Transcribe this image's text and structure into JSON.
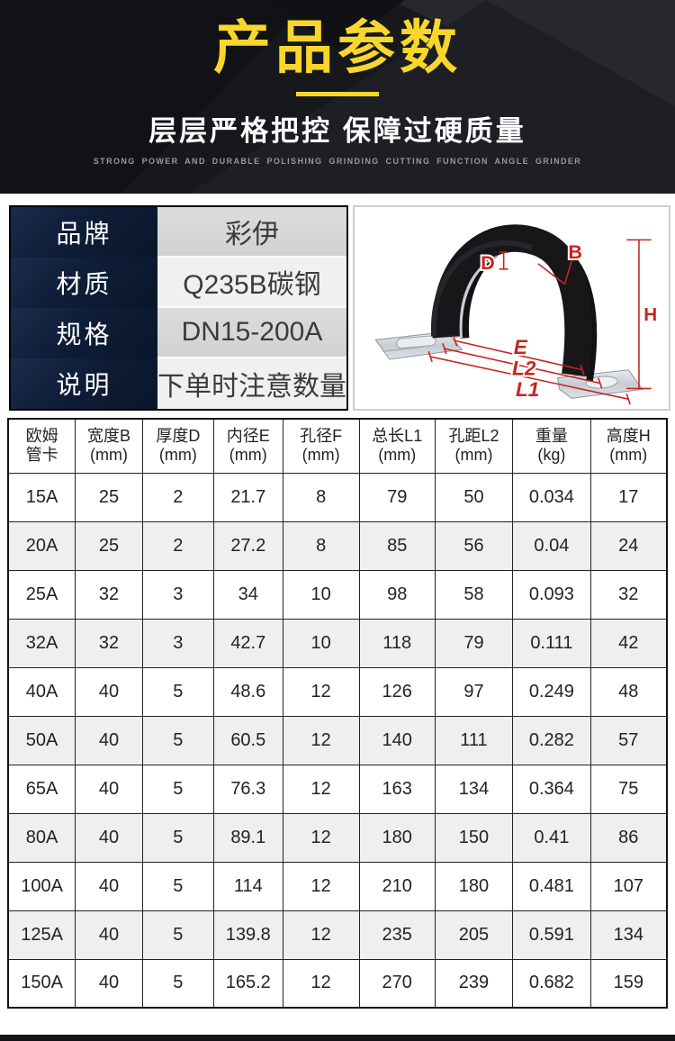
{
  "header": {
    "title": "产品参数",
    "subtitle": "层层严格把控 保障过硬质量",
    "tagline_en": "STRONG POWER AND DURABLE POLISHING GRINDING CUTTING FUNCTION ANGLE GRINDER",
    "accent_color": "#f8d62b"
  },
  "product_info": {
    "rows": [
      {
        "label": "品牌",
        "value": "彩伊"
      },
      {
        "label": "材质",
        "value": "Q235B碳钢"
      },
      {
        "label": "规格",
        "value": "DN15-200A"
      },
      {
        "label": "说明",
        "value": "下单时注意数量"
      }
    ]
  },
  "diagram": {
    "description": "omega-pipe-clamp-dimension-drawing",
    "line_color": "#c8241f",
    "labels": {
      "b": "B",
      "d": "D",
      "h": "H",
      "e": "E",
      "l2": "L2",
      "l1": "L1"
    }
  },
  "spec_table": {
    "headers": [
      {
        "l1": "欧姆",
        "l2": "管卡"
      },
      {
        "l1": "宽度B",
        "l2": "(mm)"
      },
      {
        "l1": "厚度D",
        "l2": "(mm)"
      },
      {
        "l1": "内径E",
        "l2": "(mm)"
      },
      {
        "l1": "孔径F",
        "l2": "(mm)"
      },
      {
        "l1": "总长L1",
        "l2": "(mm)"
      },
      {
        "l1": "孔距L2",
        "l2": "(mm)"
      },
      {
        "l1": "重量",
        "l2": "(kg)"
      },
      {
        "l1": "高度H",
        "l2": "(mm)"
      }
    ],
    "rows": [
      [
        "15A",
        "25",
        "2",
        "21.7",
        "8",
        "79",
        "50",
        "0.034",
        "17"
      ],
      [
        "20A",
        "25",
        "2",
        "27.2",
        "8",
        "85",
        "56",
        "0.04",
        "24"
      ],
      [
        "25A",
        "32",
        "3",
        "34",
        "10",
        "98",
        "58",
        "0.093",
        "32"
      ],
      [
        "32A",
        "32",
        "3",
        "42.7",
        "10",
        "118",
        "79",
        "0.111",
        "42"
      ],
      [
        "40A",
        "40",
        "5",
        "48.6",
        "12",
        "126",
        "97",
        "0.249",
        "48"
      ],
      [
        "50A",
        "40",
        "5",
        "60.5",
        "12",
        "140",
        "111",
        "0.282",
        "57"
      ],
      [
        "65A",
        "40",
        "5",
        "76.3",
        "12",
        "163",
        "134",
        "0.364",
        "75"
      ],
      [
        "80A",
        "40",
        "5",
        "89.1",
        "12",
        "180",
        "150",
        "0.41",
        "86"
      ],
      [
        "100A",
        "40",
        "5",
        "114",
        "12",
        "210",
        "180",
        "0.481",
        "107"
      ],
      [
        "125A",
        "40",
        "5",
        "139.8",
        "12",
        "235",
        "205",
        "0.591",
        "134"
      ],
      [
        "150A",
        "40",
        "5",
        "165.2",
        "12",
        "270",
        "239",
        "0.682",
        "159"
      ]
    ]
  }
}
